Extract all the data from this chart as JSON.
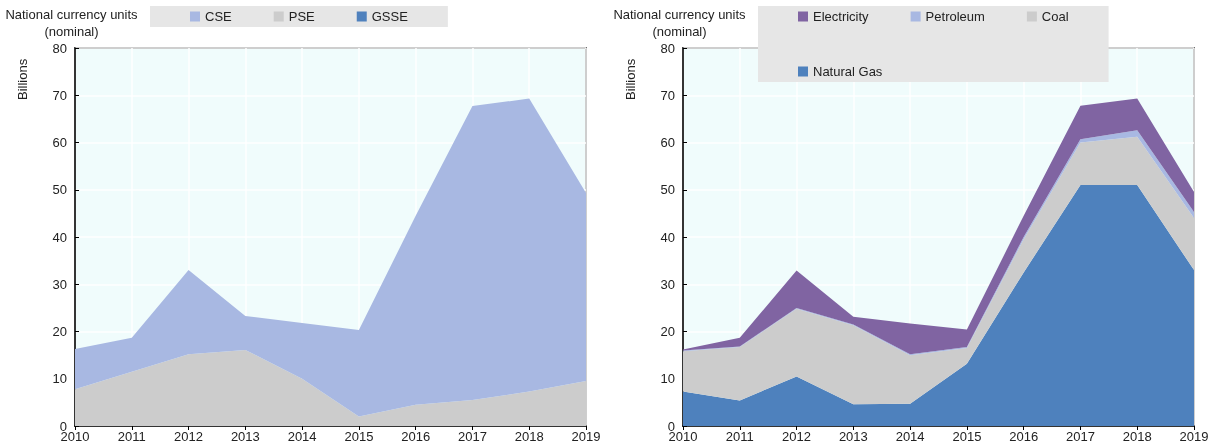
{
  "chart_data": [
    {
      "type": "area",
      "stacked": true,
      "ylabel": "Billions",
      "annotations": [
        "National currency units (nominal)"
      ],
      "categories": [
        "2010",
        "2011",
        "2012",
        "2013",
        "2014",
        "2015",
        "2016",
        "2017",
        "2018",
        "2019"
      ],
      "series": [
        {
          "name": "GSSE",
          "color": "#4f81bd",
          "values": [
            null,
            null,
            null,
            null,
            null,
            null,
            null,
            null,
            null,
            null
          ]
        },
        {
          "name": "PSE",
          "color": "#cccccc",
          "values": [
            7.8,
            11.5,
            15.2,
            16.1,
            10,
            2,
            4.5,
            5.5,
            7.3,
            9.5
          ]
        },
        {
          "name": "CSE",
          "color": "#a8b8e2",
          "values": [
            8.5,
            7.2,
            17.8,
            7.2,
            11.8,
            18.3,
            40,
            62.2,
            62,
            39.8
          ]
        }
      ],
      "ylim": [
        0,
        80
      ],
      "yticks": [
        0,
        10,
        20,
        30,
        40,
        50,
        60,
        70,
        80
      ],
      "grid": true,
      "legend": "top"
    },
    {
      "type": "area",
      "stacked": true,
      "ylabel": "Billions",
      "annotations": [
        "National currency units (nominal)"
      ],
      "categories": [
        "2010",
        "2011",
        "2012",
        "2013",
        "2014",
        "2015",
        "2016",
        "2017",
        "2018",
        "2019"
      ],
      "series": [
        {
          "name": "Natural Gas",
          "color": "#4e81bd",
          "values": [
            7.3,
            5.4,
            10.5,
            4.6,
            4.7,
            13.2,
            32.5,
            51,
            51,
            33
          ]
        },
        {
          "name": "Coal",
          "color": "#cccccc",
          "values": [
            8.5,
            11.3,
            14.3,
            16.7,
            10.3,
            3.3,
            7,
            9,
            10.2,
            11
          ]
        },
        {
          "name": "Petroleum",
          "color": "#a8b8e2",
          "values": [
            0.2,
            0.1,
            0.2,
            0.2,
            0.2,
            0.2,
            0.5,
            0.7,
            1.4,
            1.3
          ]
        },
        {
          "name": "Electricity",
          "color": "#8064a2",
          "values": [
            0.2,
            1.9,
            7.9,
            1.6,
            6.5,
            3.7,
            4.5,
            7.1,
            6.7,
            4.2
          ]
        }
      ],
      "ylim": [
        0,
        80
      ],
      "yticks": [
        0,
        10,
        20,
        30,
        40,
        50,
        60,
        70,
        80
      ],
      "grid": true,
      "legend": "top"
    }
  ]
}
